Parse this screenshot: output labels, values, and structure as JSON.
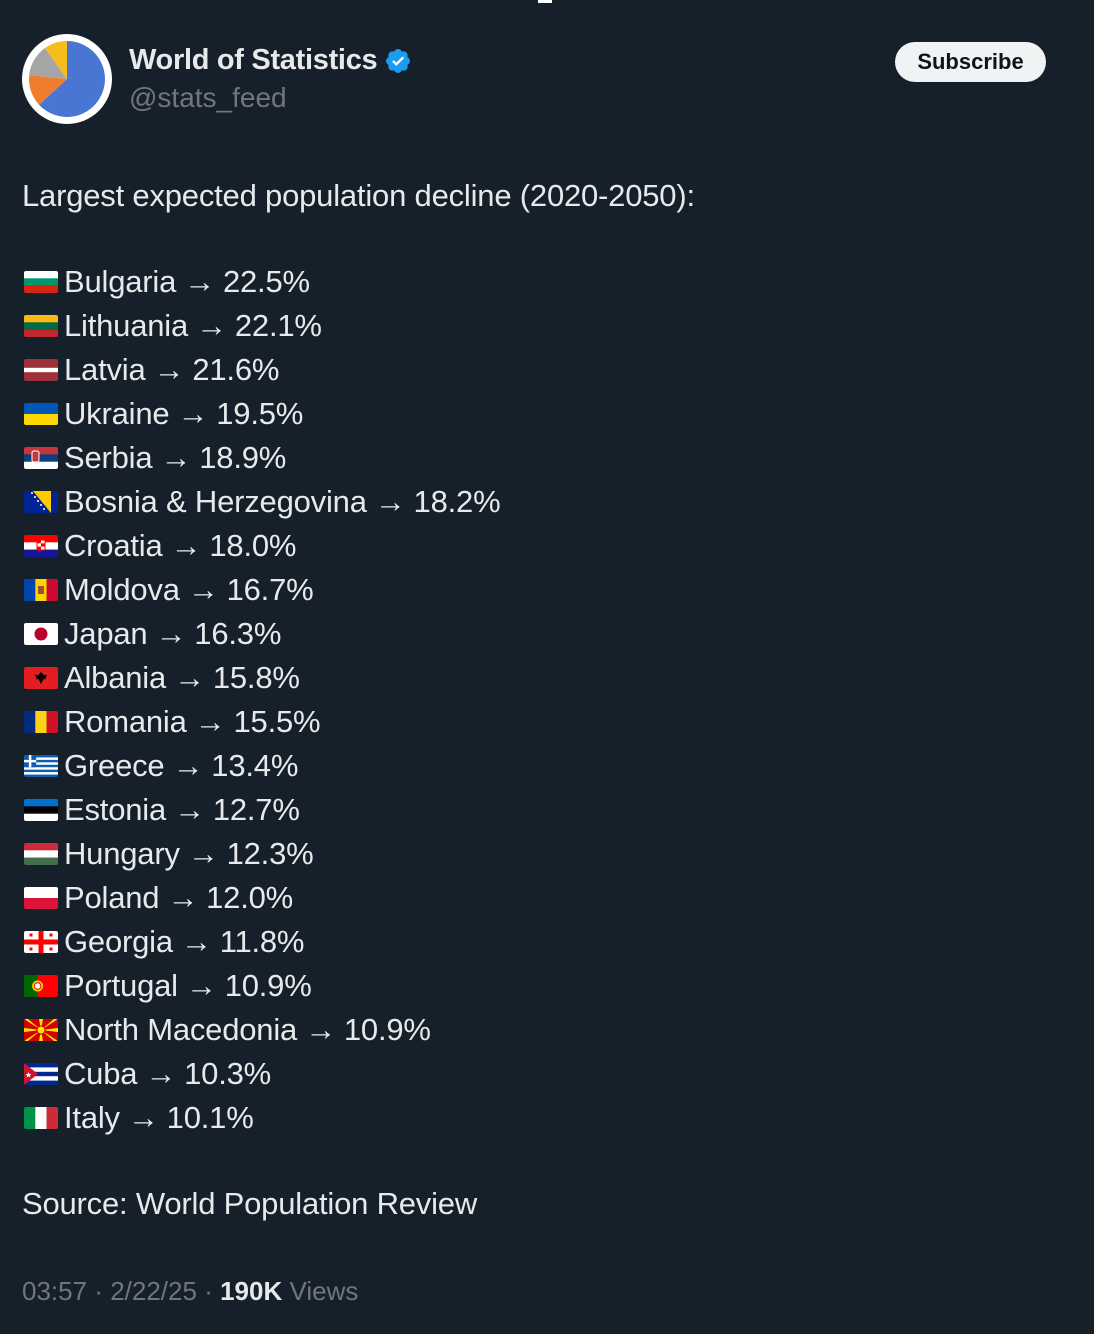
{
  "account": {
    "display_name": "World of Statistics",
    "handle": "@stats_feed",
    "avatar_icon": "pie-chart-avatar",
    "verified_icon": "verified-badge-icon",
    "subscribe_label": "Subscribe"
  },
  "post": {
    "title": "Largest expected population decline (2020-2050):",
    "arrow": "→",
    "items": [
      {
        "flag": "bulgaria-flag-icon",
        "country": "Bulgaria",
        "value": "22.5%"
      },
      {
        "flag": "lithuania-flag-icon",
        "country": "Lithuania",
        "value": "22.1%"
      },
      {
        "flag": "latvia-flag-icon",
        "country": "Latvia",
        "value": "21.6%"
      },
      {
        "flag": "ukraine-flag-icon",
        "country": "Ukraine",
        "value": "19.5%"
      },
      {
        "flag": "serbia-flag-icon",
        "country": "Serbia",
        "value": "18.9%"
      },
      {
        "flag": "bosnia-flag-icon",
        "country": "Bosnia & Herzegovina",
        "value": "18.2%"
      },
      {
        "flag": "croatia-flag-icon",
        "country": "Croatia",
        "value": "18.0%"
      },
      {
        "flag": "moldova-flag-icon",
        "country": "Moldova",
        "value": "16.7%"
      },
      {
        "flag": "japan-flag-icon",
        "country": "Japan",
        "value": "16.3%"
      },
      {
        "flag": "albania-flag-icon",
        "country": "Albania",
        "value": "15.8%"
      },
      {
        "flag": "romania-flag-icon",
        "country": "Romania",
        "value": "15.5%"
      },
      {
        "flag": "greece-flag-icon",
        "country": "Greece",
        "value": "13.4%"
      },
      {
        "flag": "estonia-flag-icon",
        "country": "Estonia",
        "value": "12.7%"
      },
      {
        "flag": "hungary-flag-icon",
        "country": "Hungary",
        "value": "12.3%"
      },
      {
        "flag": "poland-flag-icon",
        "country": "Poland",
        "value": "12.0%"
      },
      {
        "flag": "georgia-flag-icon",
        "country": "Georgia",
        "value": "11.8%"
      },
      {
        "flag": "portugal-flag-icon",
        "country": "Portugal",
        "value": "10.9%"
      },
      {
        "flag": "north-macedonia-flag-icon",
        "country": "North Macedonia",
        "value": "10.9%"
      },
      {
        "flag": "cuba-flag-icon",
        "country": "Cuba",
        "value": "10.3%"
      },
      {
        "flag": "italy-flag-icon",
        "country": "Italy",
        "value": "10.1%"
      }
    ],
    "source": "Source: World Population Review"
  },
  "meta": {
    "time": "03:57",
    "date": "2/22/25",
    "views_count": "190K",
    "views_label": "Views"
  },
  "colors": {
    "background": "#15202b",
    "text": "#e7e9ea",
    "muted": "#71767b",
    "verified": "#1d9bf0"
  }
}
